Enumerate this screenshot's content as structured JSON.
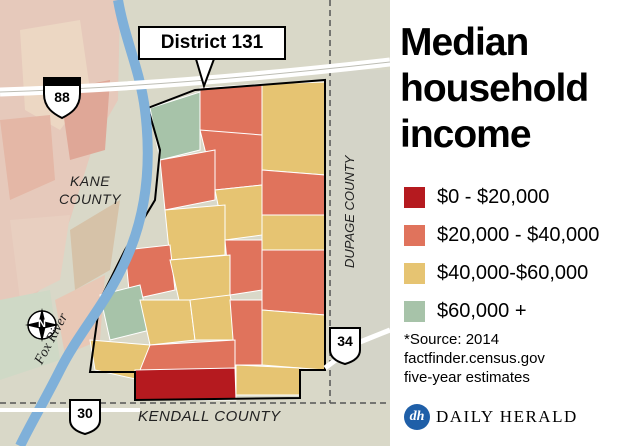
{
  "callout": {
    "district": "District 131"
  },
  "title": {
    "line1": "Median",
    "line2": "household",
    "line3": "income"
  },
  "legend": [
    {
      "label": "$0 - $20,000",
      "color": "#b51a1f"
    },
    {
      "label": "$20,000 - $40,000",
      "color": "#e0735c"
    },
    {
      "label": "$40,000-$60,000",
      "color": "#e6c472"
    },
    {
      "label": "$60,000 +",
      "color": "#a7c3a9"
    }
  ],
  "source": {
    "line1": "*Source: 2014",
    "line2": "factfinder.census.gov",
    "line3": "five-year estimates"
  },
  "brand": {
    "icon": "dh",
    "name": "DAILY HERALD"
  },
  "map": {
    "counties": {
      "kane_line1": "KANE",
      "kane_line2": "COUNTY",
      "kendall": "KENDALL COUNTY",
      "dupage": "DUPAGE COUNTY"
    },
    "river": "Fox River",
    "highways": {
      "i88": "88",
      "us34": "34",
      "us30": "30"
    },
    "compass": "N",
    "colors": {
      "river": "#7fb0d9",
      "land_outside": "#d9d8c8",
      "kane_tint": "#e8c3b4",
      "road": "#ffffff"
    }
  }
}
